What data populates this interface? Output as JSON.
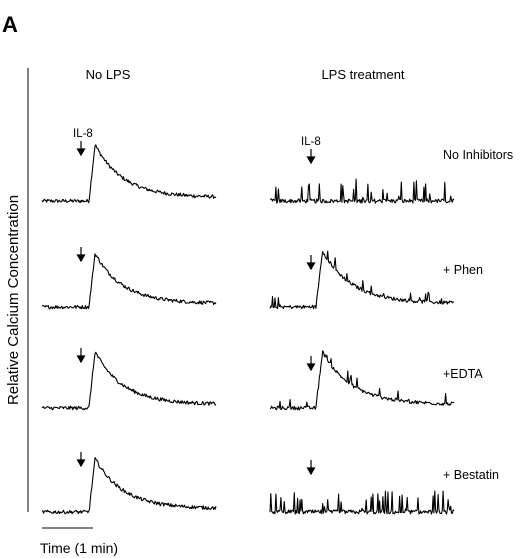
{
  "figure": {
    "panel_letter": "A",
    "y_axis_label": "Relative Calcium Concentration",
    "time_scale_label": "Time (1 min)"
  },
  "chart_data": {
    "type": "line",
    "title": "",
    "ylabel": "Relative Calcium Concentration",
    "xlabel": "Time (1 min)",
    "stimulus_label": "IL-8",
    "columns": [
      "No LPS",
      "LPS treatment"
    ],
    "conditions": [
      "No Inhibitors",
      "+ Phen",
      "+EDTA",
      "+ Bestatin"
    ],
    "grid": false,
    "legend": "none",
    "stimulus_time_min": 0.75,
    "duration_min": 3,
    "traces": [
      {
        "column": "No LPS",
        "condition": "No Inhibitors",
        "response": "transient",
        "peak": 1.0,
        "show_stimulus_label": true
      },
      {
        "column": "LPS treatment",
        "condition": "No Inhibitors",
        "response": "none",
        "peak": 0.0,
        "show_stimulus_label": true
      },
      {
        "column": "No LPS",
        "condition": "+ Phen",
        "response": "transient",
        "peak": 0.95,
        "show_stimulus_label": false
      },
      {
        "column": "LPS treatment",
        "condition": "+ Phen",
        "response": "transient",
        "peak": 1.0,
        "show_stimulus_label": false
      },
      {
        "column": "No LPS",
        "condition": "+EDTA",
        "response": "transient",
        "peak": 1.0,
        "show_stimulus_label": false
      },
      {
        "column": "LPS treatment",
        "condition": "+EDTA",
        "response": "transient",
        "peak": 1.0,
        "show_stimulus_label": false
      },
      {
        "column": "No LPS",
        "condition": "+ Bestatin",
        "response": "transient",
        "peak": 0.95,
        "show_stimulus_label": false
      },
      {
        "column": "LPS treatment",
        "condition": "+ Bestatin",
        "response": "none",
        "peak": 0.0,
        "show_stimulus_label": false
      }
    ]
  }
}
